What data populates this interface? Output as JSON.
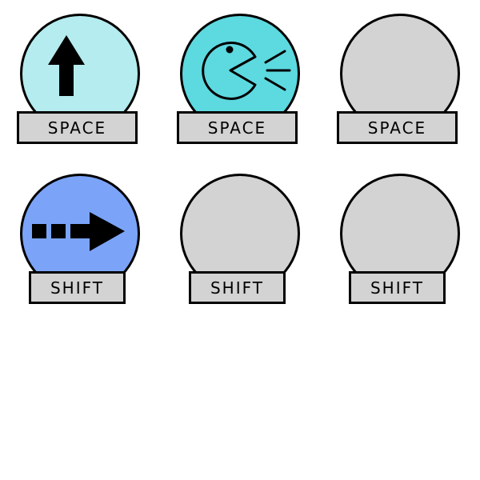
{
  "controls": [
    {
      "icon": "up-arrow-icon",
      "key": "SPACE",
      "color": "#b4ecef"
    },
    {
      "icon": "pacman-shout-icon",
      "key": "SPACE",
      "color": "#5dd9e0"
    },
    {
      "icon": "none",
      "key": "SPACE",
      "color": "#d3d3d3"
    },
    {
      "icon": "dash-arrow-right-icon",
      "key": "SHIFT",
      "color": "#7ba4f9"
    },
    {
      "icon": "none",
      "key": "SHIFT",
      "color": "#d3d3d3"
    },
    {
      "icon": "none",
      "key": "SHIFT",
      "color": "#d3d3d3"
    }
  ]
}
